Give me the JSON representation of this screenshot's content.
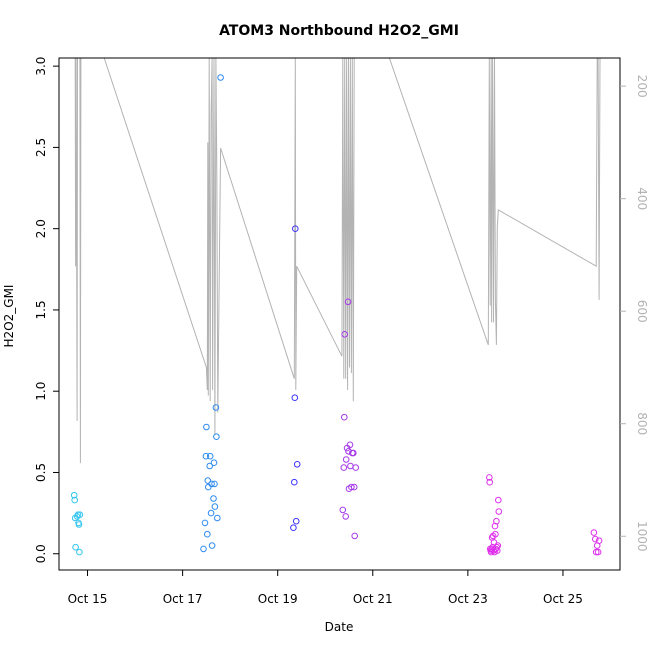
{
  "chart_data": {
    "type": "scatter",
    "title": "ATOM3 Northbound H2O2_GMI",
    "xlabel": "Date",
    "ylabel": "H2O2_GMI",
    "x_ticks": [
      {
        "day": 15,
        "label": "Oct 15"
      },
      {
        "day": 17,
        "label": "Oct 17"
      },
      {
        "day": 19,
        "label": "Oct 19"
      },
      {
        "day": 21,
        "label": "Oct 21"
      },
      {
        "day": 23,
        "label": "Oct 23"
      },
      {
        "day": 25,
        "label": "Oct 25"
      }
    ],
    "xlim": [
      14.4,
      26.2
    ],
    "ylim": [
      -0.1,
      3.05
    ],
    "y_ticks": [
      "0.0",
      "0.5",
      "1.0",
      "1.5",
      "2.0",
      "2.5",
      "3.0"
    ],
    "y2_ticks": [
      "200",
      "400",
      "600",
      "800",
      "1000"
    ],
    "y2_reversed": true,
    "y2lim": [
      150,
      1060
    ],
    "y2_color": "#b3b3b3",
    "grid": false,
    "points": [
      {
        "x": 14.72,
        "y": 0.36,
        "c": "#33c5ef"
      },
      {
        "x": 14.73,
        "y": 0.33,
        "c": "#33c5ef"
      },
      {
        "x": 14.74,
        "y": 0.22,
        "c": "#33c5ef"
      },
      {
        "x": 14.75,
        "y": 0.04,
        "c": "#33c5ef"
      },
      {
        "x": 14.78,
        "y": 0.23,
        "c": "#33c5ef"
      },
      {
        "x": 14.8,
        "y": 0.24,
        "c": "#33c5ef"
      },
      {
        "x": 14.81,
        "y": 0.19,
        "c": "#33c5ef"
      },
      {
        "x": 14.82,
        "y": 0.18,
        "c": "#33c5ef"
      },
      {
        "x": 14.83,
        "y": 0.01,
        "c": "#33c5ef"
      },
      {
        "x": 14.84,
        "y": 0.24,
        "c": "#33c5ef"
      },
      {
        "x": 17.44,
        "y": 0.03,
        "c": "#2e8bef"
      },
      {
        "x": 17.47,
        "y": 0.19,
        "c": "#2e8bef"
      },
      {
        "x": 17.49,
        "y": 0.6,
        "c": "#2e8bef"
      },
      {
        "x": 17.5,
        "y": 0.78,
        "c": "#2e8bef"
      },
      {
        "x": 17.52,
        "y": 0.12,
        "c": "#2e8bef"
      },
      {
        "x": 17.53,
        "y": 0.45,
        "c": "#2e8bef"
      },
      {
        "x": 17.54,
        "y": 0.41,
        "c": "#2e8bef"
      },
      {
        "x": 17.57,
        "y": 0.54,
        "c": "#2e8bef"
      },
      {
        "x": 17.58,
        "y": 0.6,
        "c": "#2e8bef"
      },
      {
        "x": 17.6,
        "y": 0.25,
        "c": "#2e8bef"
      },
      {
        "x": 17.61,
        "y": 0.43,
        "c": "#2e8bef"
      },
      {
        "x": 17.62,
        "y": 0.05,
        "c": "#2e8bef"
      },
      {
        "x": 17.65,
        "y": 0.34,
        "c": "#2e8bef"
      },
      {
        "x": 17.66,
        "y": 0.56,
        "c": "#2e8bef"
      },
      {
        "x": 17.67,
        "y": 0.43,
        "c": "#2e8bef"
      },
      {
        "x": 17.68,
        "y": 0.29,
        "c": "#2e8bef"
      },
      {
        "x": 17.7,
        "y": 0.9,
        "c": "#2e8bef"
      },
      {
        "x": 17.71,
        "y": 0.72,
        "c": "#2e8bef"
      },
      {
        "x": 17.73,
        "y": 0.22,
        "c": "#2e8bef"
      },
      {
        "x": 17.8,
        "y": 2.93,
        "c": "#2e8bef"
      },
      {
        "x": 19.33,
        "y": 0.16,
        "c": "#3f33ff"
      },
      {
        "x": 19.35,
        "y": 0.44,
        "c": "#3f33ff"
      },
      {
        "x": 19.36,
        "y": 0.96,
        "c": "#3f33ff"
      },
      {
        "x": 19.37,
        "y": 2.0,
        "c": "#3f33ff"
      },
      {
        "x": 19.39,
        "y": 0.2,
        "c": "#3f33ff"
      },
      {
        "x": 19.41,
        "y": 0.55,
        "c": "#3f33ff"
      },
      {
        "x": 20.37,
        "y": 0.27,
        "c": "#a63ae8"
      },
      {
        "x": 20.39,
        "y": 0.53,
        "c": "#a63ae8"
      },
      {
        "x": 20.4,
        "y": 0.84,
        "c": "#a63ae8"
      },
      {
        "x": 20.41,
        "y": 1.35,
        "c": "#a63ae8"
      },
      {
        "x": 20.43,
        "y": 0.23,
        "c": "#a63ae8"
      },
      {
        "x": 20.44,
        "y": 0.58,
        "c": "#a63ae8"
      },
      {
        "x": 20.46,
        "y": 0.65,
        "c": "#a63ae8"
      },
      {
        "x": 20.48,
        "y": 1.55,
        "c": "#a63ae8"
      },
      {
        "x": 20.49,
        "y": 0.63,
        "c": "#a63ae8"
      },
      {
        "x": 20.5,
        "y": 0.4,
        "c": "#a63ae8"
      },
      {
        "x": 20.52,
        "y": 0.67,
        "c": "#a63ae8"
      },
      {
        "x": 20.53,
        "y": 0.54,
        "c": "#a63ae8"
      },
      {
        "x": 20.55,
        "y": 0.41,
        "c": "#a63ae8"
      },
      {
        "x": 20.57,
        "y": 0.62,
        "c": "#a63ae8"
      },
      {
        "x": 20.59,
        "y": 0.62,
        "c": "#a63ae8"
      },
      {
        "x": 20.61,
        "y": 0.41,
        "c": "#a63ae8"
      },
      {
        "x": 20.62,
        "y": 0.11,
        "c": "#a63ae8"
      },
      {
        "x": 20.64,
        "y": 0.53,
        "c": "#a63ae8"
      },
      {
        "x": 23.45,
        "y": 0.47,
        "c": "#df30ee"
      },
      {
        "x": 23.46,
        "y": 0.44,
        "c": "#df30ee"
      },
      {
        "x": 23.47,
        "y": 0.03,
        "c": "#df30ee"
      },
      {
        "x": 23.48,
        "y": 0.02,
        "c": "#df30ee"
      },
      {
        "x": 23.49,
        "y": 0.01,
        "c": "#df30ee"
      },
      {
        "x": 23.5,
        "y": 0.03,
        "c": "#df30ee"
      },
      {
        "x": 23.51,
        "y": 0.1,
        "c": "#df30ee"
      },
      {
        "x": 23.52,
        "y": 0.04,
        "c": "#df30ee"
      },
      {
        "x": 23.53,
        "y": 0.11,
        "c": "#df30ee"
      },
      {
        "x": 23.54,
        "y": 0.02,
        "c": "#df30ee"
      },
      {
        "x": 23.55,
        "y": 0.07,
        "c": "#df30ee"
      },
      {
        "x": 23.56,
        "y": 0.01,
        "c": "#df30ee"
      },
      {
        "x": 23.57,
        "y": 0.17,
        "c": "#df30ee"
      },
      {
        "x": 23.58,
        "y": 0.12,
        "c": "#df30ee"
      },
      {
        "x": 23.59,
        "y": 0.03,
        "c": "#df30ee"
      },
      {
        "x": 23.6,
        "y": 0.2,
        "c": "#df30ee"
      },
      {
        "x": 23.61,
        "y": 0.04,
        "c": "#df30ee"
      },
      {
        "x": 23.62,
        "y": 0.02,
        "c": "#df30ee"
      },
      {
        "x": 23.63,
        "y": 0.05,
        "c": "#df30ee"
      },
      {
        "x": 23.64,
        "y": 0.33,
        "c": "#df30ee"
      },
      {
        "x": 23.65,
        "y": 0.26,
        "c": "#df30ee"
      },
      {
        "x": 25.65,
        "y": 0.13,
        "c": "#df30ee"
      },
      {
        "x": 25.68,
        "y": 0.09,
        "c": "#df30ee"
      },
      {
        "x": 25.7,
        "y": 0.01,
        "c": "#df30ee"
      },
      {
        "x": 25.72,
        "y": 0.05,
        "c": "#df30ee"
      },
      {
        "x": 25.74,
        "y": 0.01,
        "c": "#df30ee"
      },
      {
        "x": 25.76,
        "y": 0.08,
        "c": "#df30ee"
      }
    ],
    "pressure_line": [
      [
        14.72,
        100
      ],
      [
        14.74,
        100
      ],
      [
        14.75,
        520
      ],
      [
        14.76,
        100
      ],
      [
        14.78,
        795
      ],
      [
        14.79,
        100
      ],
      [
        14.81,
        100
      ],
      [
        14.84,
        100
      ],
      [
        14.85,
        870
      ],
      [
        14.86,
        100
      ],
      [
        14.87,
        100
      ],
      [
        15.35,
        150
      ],
      [
        17.5,
        700
      ],
      [
        17.52,
        740
      ],
      [
        17.53,
        300
      ],
      [
        17.54,
        750
      ],
      [
        17.56,
        100
      ],
      [
        17.58,
        760
      ],
      [
        17.6,
        250
      ],
      [
        17.62,
        100
      ],
      [
        17.63,
        740
      ],
      [
        17.66,
        100
      ],
      [
        17.68,
        820
      ],
      [
        17.7,
        120
      ],
      [
        17.72,
        350
      ],
      [
        17.74,
        780
      ],
      [
        17.8,
        310
      ],
      [
        19.35,
        720
      ],
      [
        19.37,
        100
      ],
      [
        19.38,
        740
      ],
      [
        19.4,
        520
      ],
      [
        20.35,
        680
      ],
      [
        20.37,
        100
      ],
      [
        20.39,
        720
      ],
      [
        20.41,
        100
      ],
      [
        20.43,
        720
      ],
      [
        20.45,
        100
      ],
      [
        20.47,
        740
      ],
      [
        20.49,
        100
      ],
      [
        20.51,
        700
      ],
      [
        20.53,
        100
      ],
      [
        20.55,
        710
      ],
      [
        20.57,
        100
      ],
      [
        20.59,
        760
      ],
      [
        20.61,
        100
      ],
      [
        20.63,
        120
      ],
      [
        21.35,
        150
      ],
      [
        23.43,
        660
      ],
      [
        23.45,
        100
      ],
      [
        23.47,
        590
      ],
      [
        23.49,
        100
      ],
      [
        23.5,
        620
      ],
      [
        23.52,
        100
      ],
      [
        23.54,
        620
      ],
      [
        23.56,
        100
      ],
      [
        23.58,
        580
      ],
      [
        23.6,
        660
      ],
      [
        23.62,
        450
      ],
      [
        23.64,
        420
      ],
      [
        25.7,
        520
      ],
      [
        25.72,
        100
      ],
      [
        25.74,
        100
      ],
      [
        25.76,
        580
      ],
      [
        25.78,
        100
      ],
      [
        25.8,
        100
      ]
    ]
  }
}
